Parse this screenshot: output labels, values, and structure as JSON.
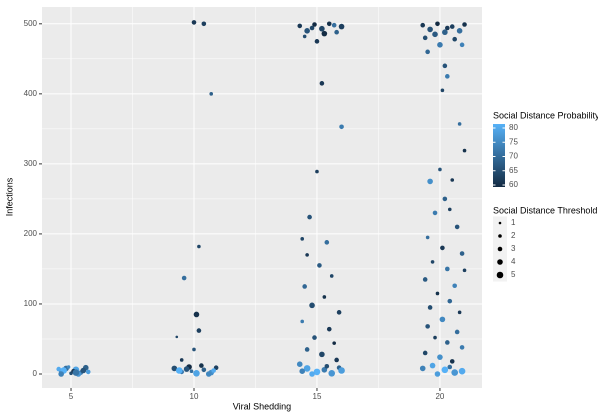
{
  "chart_data": {
    "type": "scatter",
    "x_label": "Viral Shedding",
    "y_label": "Infections",
    "xlim": [
      3.82,
      21.71
    ],
    "ylim": [
      -20,
      524
    ],
    "xticks": [
      5,
      10,
      15,
      20
    ],
    "yticks": [
      0,
      100,
      200,
      300,
      400,
      500
    ],
    "grid": true,
    "color_legend": {
      "title": "Social Distance Probability",
      "low_color": "#132B43",
      "high_color": "#56B1F7",
      "range": [
        60,
        80
      ],
      "ticks": [
        60,
        65,
        70,
        75,
        80
      ]
    },
    "size_legend": {
      "title": "Social Distance Threshold",
      "values": [
        1,
        2,
        3,
        4,
        5
      ]
    },
    "points": [
      {
        "x": 4.6,
        "y": 3,
        "p": 75,
        "t": 3
      },
      {
        "x": 4.8,
        "y": 8,
        "p": 70,
        "t": 4
      },
      {
        "x": 5.0,
        "y": 1,
        "p": 65,
        "t": 2
      },
      {
        "x": 5.2,
        "y": 6,
        "p": 78,
        "t": 5
      },
      {
        "x": 5.4,
        "y": 2,
        "p": 72,
        "t": 3
      },
      {
        "x": 5.6,
        "y": 9,
        "p": 68,
        "t": 4
      },
      {
        "x": 4.7,
        "y": 5,
        "p": 80,
        "t": 5
      },
      {
        "x": 5.1,
        "y": 4,
        "p": 62,
        "t": 3
      },
      {
        "x": 5.3,
        "y": 0,
        "p": 76,
        "t": 4
      },
      {
        "x": 4.9,
        "y": 10,
        "p": 74,
        "t": 2
      },
      {
        "x": 5.5,
        "y": 5,
        "p": 66,
        "t": 4
      },
      {
        "x": 4.5,
        "y": 7,
        "p": 79,
        "t": 3
      },
      {
        "x": 5.2,
        "y": 2,
        "p": 71,
        "t": 5
      },
      {
        "x": 4.6,
        "y": 0,
        "p": 73,
        "t": 4
      },
      {
        "x": 5.7,
        "y": 3,
        "p": 77,
        "t": 3
      },
      {
        "x": 10.0,
        "y": 502,
        "p": 62,
        "t": 3
      },
      {
        "x": 10.4,
        "y": 500,
        "p": 63,
        "t": 3
      },
      {
        "x": 10.7,
        "y": 400,
        "p": 68,
        "t": 2
      },
      {
        "x": 10.2,
        "y": 182,
        "p": 64,
        "t": 2
      },
      {
        "x": 9.6,
        "y": 137,
        "p": 70,
        "t": 3
      },
      {
        "x": 10.1,
        "y": 85,
        "p": 61,
        "t": 4
      },
      {
        "x": 10.2,
        "y": 62,
        "p": 63,
        "t": 3
      },
      {
        "x": 9.3,
        "y": 53,
        "p": 64,
        "t": 1
      },
      {
        "x": 10.0,
        "y": 35,
        "p": 66,
        "t": 2
      },
      {
        "x": 9.5,
        "y": 20,
        "p": 62,
        "t": 2
      },
      {
        "x": 9.2,
        "y": 8,
        "p": 65,
        "t": 4
      },
      {
        "x": 9.5,
        "y": 3,
        "p": 72,
        "t": 3
      },
      {
        "x": 9.8,
        "y": 10,
        "p": 60,
        "t": 4
      },
      {
        "x": 10.1,
        "y": 1,
        "p": 78,
        "t": 5
      },
      {
        "x": 10.4,
        "y": 6,
        "p": 68,
        "t": 3
      },
      {
        "x": 10.7,
        "y": 2,
        "p": 75,
        "t": 4
      },
      {
        "x": 10.9,
        "y": 9,
        "p": 63,
        "t": 3
      },
      {
        "x": 9.4,
        "y": 5,
        "p": 80,
        "t": 5
      },
      {
        "x": 9.9,
        "y": 4,
        "p": 70,
        "t": 2
      },
      {
        "x": 10.6,
        "y": 0,
        "p": 74,
        "t": 4
      },
      {
        "x": 10.3,
        "y": 12,
        "p": 61,
        "t": 3
      },
      {
        "x": 9.7,
        "y": 7,
        "p": 66,
        "t": 4
      },
      {
        "x": 10.8,
        "y": 5,
        "p": 79,
        "t": 3
      },
      {
        "x": 14.3,
        "y": 497,
        "p": 62,
        "t": 3
      },
      {
        "x": 14.6,
        "y": 490,
        "p": 66,
        "t": 4
      },
      {
        "x": 14.9,
        "y": 499,
        "p": 60,
        "t": 3
      },
      {
        "x": 15.2,
        "y": 493,
        "p": 64,
        "t": 4
      },
      {
        "x": 15.5,
        "y": 500,
        "p": 61,
        "t": 3
      },
      {
        "x": 15.8,
        "y": 488,
        "p": 68,
        "t": 3
      },
      {
        "x": 16.0,
        "y": 496,
        "p": 63,
        "t": 4
      },
      {
        "x": 14.5,
        "y": 482,
        "p": 65,
        "t": 2
      },
      {
        "x": 15.0,
        "y": 475,
        "p": 62,
        "t": 3
      },
      {
        "x": 15.7,
        "y": 498,
        "p": 70,
        "t": 3
      },
      {
        "x": 15.3,
        "y": 486,
        "p": 60,
        "t": 4
      },
      {
        "x": 14.8,
        "y": 494,
        "p": 64,
        "t": 3
      },
      {
        "x": 15.2,
        "y": 415,
        "p": 62,
        "t": 3
      },
      {
        "x": 16.0,
        "y": 353,
        "p": 72,
        "t": 3
      },
      {
        "x": 15.0,
        "y": 289,
        "p": 63,
        "t": 2
      },
      {
        "x": 14.7,
        "y": 224,
        "p": 66,
        "t": 3
      },
      {
        "x": 14.4,
        "y": 193,
        "p": 64,
        "t": 2
      },
      {
        "x": 15.4,
        "y": 188,
        "p": 70,
        "t": 3
      },
      {
        "x": 14.6,
        "y": 170,
        "p": 62,
        "t": 2
      },
      {
        "x": 15.1,
        "y": 155,
        "p": 67,
        "t": 3
      },
      {
        "x": 15.6,
        "y": 140,
        "p": 64,
        "t": 2
      },
      {
        "x": 14.5,
        "y": 125,
        "p": 69,
        "t": 3
      },
      {
        "x": 15.3,
        "y": 110,
        "p": 61,
        "t": 2
      },
      {
        "x": 14.8,
        "y": 98,
        "p": 65,
        "t": 4
      },
      {
        "x": 15.9,
        "y": 88,
        "p": 63,
        "t": 3
      },
      {
        "x": 14.4,
        "y": 75,
        "p": 72,
        "t": 2
      },
      {
        "x": 15.5,
        "y": 64,
        "p": 62,
        "t": 3
      },
      {
        "x": 14.9,
        "y": 52,
        "p": 66,
        "t": 3
      },
      {
        "x": 15.7,
        "y": 44,
        "p": 60,
        "t": 2
      },
      {
        "x": 14.6,
        "y": 35,
        "p": 68,
        "t": 3
      },
      {
        "x": 15.2,
        "y": 28,
        "p": 64,
        "t": 4
      },
      {
        "x": 15.8,
        "y": 20,
        "p": 62,
        "t": 3
      },
      {
        "x": 14.3,
        "y": 14,
        "p": 74,
        "t": 4
      },
      {
        "x": 14.6,
        "y": 8,
        "p": 78,
        "t": 5
      },
      {
        "x": 15.0,
        "y": 3,
        "p": 80,
        "t": 5
      },
      {
        "x": 15.3,
        "y": 6,
        "p": 72,
        "t": 4
      },
      {
        "x": 15.6,
        "y": 1,
        "p": 76,
        "t": 5
      },
      {
        "x": 15.9,
        "y": 9,
        "p": 68,
        "t": 3
      },
      {
        "x": 14.8,
        "y": 0,
        "p": 79,
        "t": 4
      },
      {
        "x": 15.4,
        "y": 11,
        "p": 65,
        "t": 3
      },
      {
        "x": 14.4,
        "y": 4,
        "p": 73,
        "t": 4
      },
      {
        "x": 16.0,
        "y": 5,
        "p": 77,
        "t": 5
      },
      {
        "x": 19.3,
        "y": 498,
        "p": 62,
        "t": 3
      },
      {
        "x": 19.6,
        "y": 492,
        "p": 66,
        "t": 4
      },
      {
        "x": 19.9,
        "y": 500,
        "p": 60,
        "t": 3
      },
      {
        "x": 20.2,
        "y": 488,
        "p": 68,
        "t": 4
      },
      {
        "x": 20.5,
        "y": 496,
        "p": 63,
        "t": 3
      },
      {
        "x": 20.8,
        "y": 490,
        "p": 70,
        "t": 4
      },
      {
        "x": 21.0,
        "y": 499,
        "p": 61,
        "t": 3
      },
      {
        "x": 19.4,
        "y": 480,
        "p": 65,
        "t": 3
      },
      {
        "x": 20.0,
        "y": 470,
        "p": 72,
        "t": 4
      },
      {
        "x": 20.6,
        "y": 478,
        "p": 64,
        "t": 3
      },
      {
        "x": 19.8,
        "y": 485,
        "p": 67,
        "t": 4
      },
      {
        "x": 20.3,
        "y": 494,
        "p": 62,
        "t": 3
      },
      {
        "x": 19.5,
        "y": 460,
        "p": 69,
        "t": 3
      },
      {
        "x": 20.9,
        "y": 470,
        "p": 73,
        "t": 3
      },
      {
        "x": 20.2,
        "y": 440,
        "p": 66,
        "t": 3
      },
      {
        "x": 20.3,
        "y": 425,
        "p": 72,
        "t": 3
      },
      {
        "x": 20.1,
        "y": 405,
        "p": 64,
        "t": 2
      },
      {
        "x": 20.8,
        "y": 357,
        "p": 70,
        "t": 2
      },
      {
        "x": 21.0,
        "y": 319,
        "p": 61,
        "t": 2
      },
      {
        "x": 20.0,
        "y": 292,
        "p": 66,
        "t": 2
      },
      {
        "x": 19.6,
        "y": 275,
        "p": 75,
        "t": 4
      },
      {
        "x": 20.5,
        "y": 277,
        "p": 62,
        "t": 2
      },
      {
        "x": 20.2,
        "y": 250,
        "p": 68,
        "t": 3
      },
      {
        "x": 19.8,
        "y": 230,
        "p": 72,
        "t": 3
      },
      {
        "x": 20.4,
        "y": 235,
        "p": 63,
        "t": 2
      },
      {
        "x": 20.7,
        "y": 210,
        "p": 66,
        "t": 3
      },
      {
        "x": 19.5,
        "y": 195,
        "p": 70,
        "t": 2
      },
      {
        "x": 20.1,
        "y": 180,
        "p": 62,
        "t": 3
      },
      {
        "x": 20.9,
        "y": 172,
        "p": 68,
        "t": 3
      },
      {
        "x": 19.7,
        "y": 160,
        "p": 64,
        "t": 2
      },
      {
        "x": 20.3,
        "y": 150,
        "p": 71,
        "t": 3
      },
      {
        "x": 21.0,
        "y": 148,
        "p": 63,
        "t": 2
      },
      {
        "x": 19.4,
        "y": 135,
        "p": 67,
        "t": 3
      },
      {
        "x": 20.6,
        "y": 126,
        "p": 73,
        "t": 3
      },
      {
        "x": 19.9,
        "y": 115,
        "p": 61,
        "t": 2
      },
      {
        "x": 20.4,
        "y": 104,
        "p": 69,
        "t": 3
      },
      {
        "x": 19.6,
        "y": 95,
        "p": 65,
        "t": 3
      },
      {
        "x": 20.8,
        "y": 88,
        "p": 62,
        "t": 2
      },
      {
        "x": 20.1,
        "y": 78,
        "p": 74,
        "t": 4
      },
      {
        "x": 19.5,
        "y": 68,
        "p": 66,
        "t": 3
      },
      {
        "x": 20.7,
        "y": 60,
        "p": 70,
        "t": 3
      },
      {
        "x": 19.8,
        "y": 52,
        "p": 63,
        "t": 2
      },
      {
        "x": 20.3,
        "y": 45,
        "p": 68,
        "t": 3
      },
      {
        "x": 20.9,
        "y": 38,
        "p": 72,
        "t": 3
      },
      {
        "x": 19.4,
        "y": 30,
        "p": 64,
        "t": 3
      },
      {
        "x": 20.0,
        "y": 24,
        "p": 75,
        "t": 4
      },
      {
        "x": 20.5,
        "y": 18,
        "p": 61,
        "t": 3
      },
      {
        "x": 19.7,
        "y": 12,
        "p": 78,
        "t": 4
      },
      {
        "x": 20.2,
        "y": 6,
        "p": 80,
        "t": 5
      },
      {
        "x": 20.6,
        "y": 2,
        "p": 76,
        "t": 5
      },
      {
        "x": 19.3,
        "y": 8,
        "p": 73,
        "t": 4
      },
      {
        "x": 20.9,
        "y": 4,
        "p": 79,
        "t": 5
      },
      {
        "x": 19.9,
        "y": 0,
        "p": 77,
        "t": 4
      },
      {
        "x": 20.4,
        "y": 10,
        "p": 70,
        "t": 3
      }
    ]
  }
}
